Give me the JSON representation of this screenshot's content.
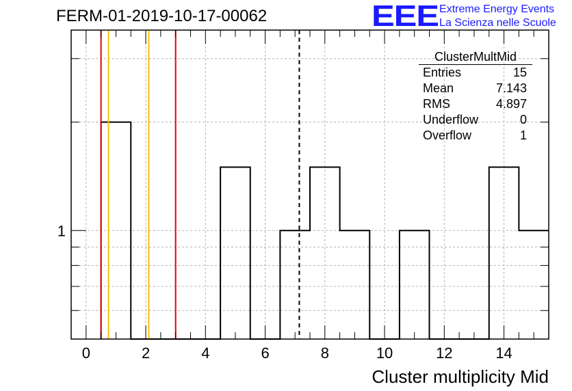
{
  "header": {
    "title": "FERM-01-2019-10-17-00062"
  },
  "logo": {
    "mark": "EEE",
    "line1": "Extreme Energy Events",
    "line2": "La Scienza nelle Scuole",
    "color": "#1a1aff"
  },
  "stats": {
    "title": "ClusterMultMid",
    "rows": [
      {
        "label": "Entries",
        "value": "15"
      },
      {
        "label": "Mean",
        "value": "7.143"
      },
      {
        "label": "RMS",
        "value": "4.897"
      },
      {
        "label": "Underflow",
        "value": "0"
      },
      {
        "label": "Overflow",
        "value": "1"
      }
    ]
  },
  "chart_data": {
    "type": "bar",
    "histogram": true,
    "title": "FERM-01-2019-10-17-00062",
    "xlabel": "Cluster multiplicity Mid",
    "ylabel": "",
    "xlim": [
      -0.5,
      15.5
    ],
    "ylim": [
      0.5,
      3.6
    ],
    "log_y": true,
    "grid": true,
    "bin_edges": [
      0.5,
      1.5,
      2.5,
      3.5,
      4.5,
      5.5,
      6.5,
      7.5,
      8.5,
      9.5,
      10.5,
      11.5,
      12.5,
      13.5,
      14.5,
      15.5
    ],
    "values": [
      2,
      0,
      0,
      0,
      1.5,
      0,
      1,
      1.5,
      1,
      0,
      1,
      0,
      0,
      1.5,
      1
    ],
    "x_ticks": [
      0,
      2,
      4,
      6,
      8,
      10,
      12,
      14
    ],
    "y_tick_labels": [
      {
        "value": 1,
        "label": "1"
      }
    ],
    "vertical_lines": [
      {
        "x": 0.5,
        "color": "#e00000",
        "style": "solid"
      },
      {
        "x": 0.75,
        "color": "#ffbf00",
        "style": "solid"
      },
      {
        "x": 2.1,
        "color": "#ffbf00",
        "style": "solid"
      },
      {
        "x": 3.0,
        "color": "#e00000",
        "style": "solid"
      },
      {
        "x": 7.143,
        "color": "#000000",
        "style": "dashed"
      }
    ]
  }
}
